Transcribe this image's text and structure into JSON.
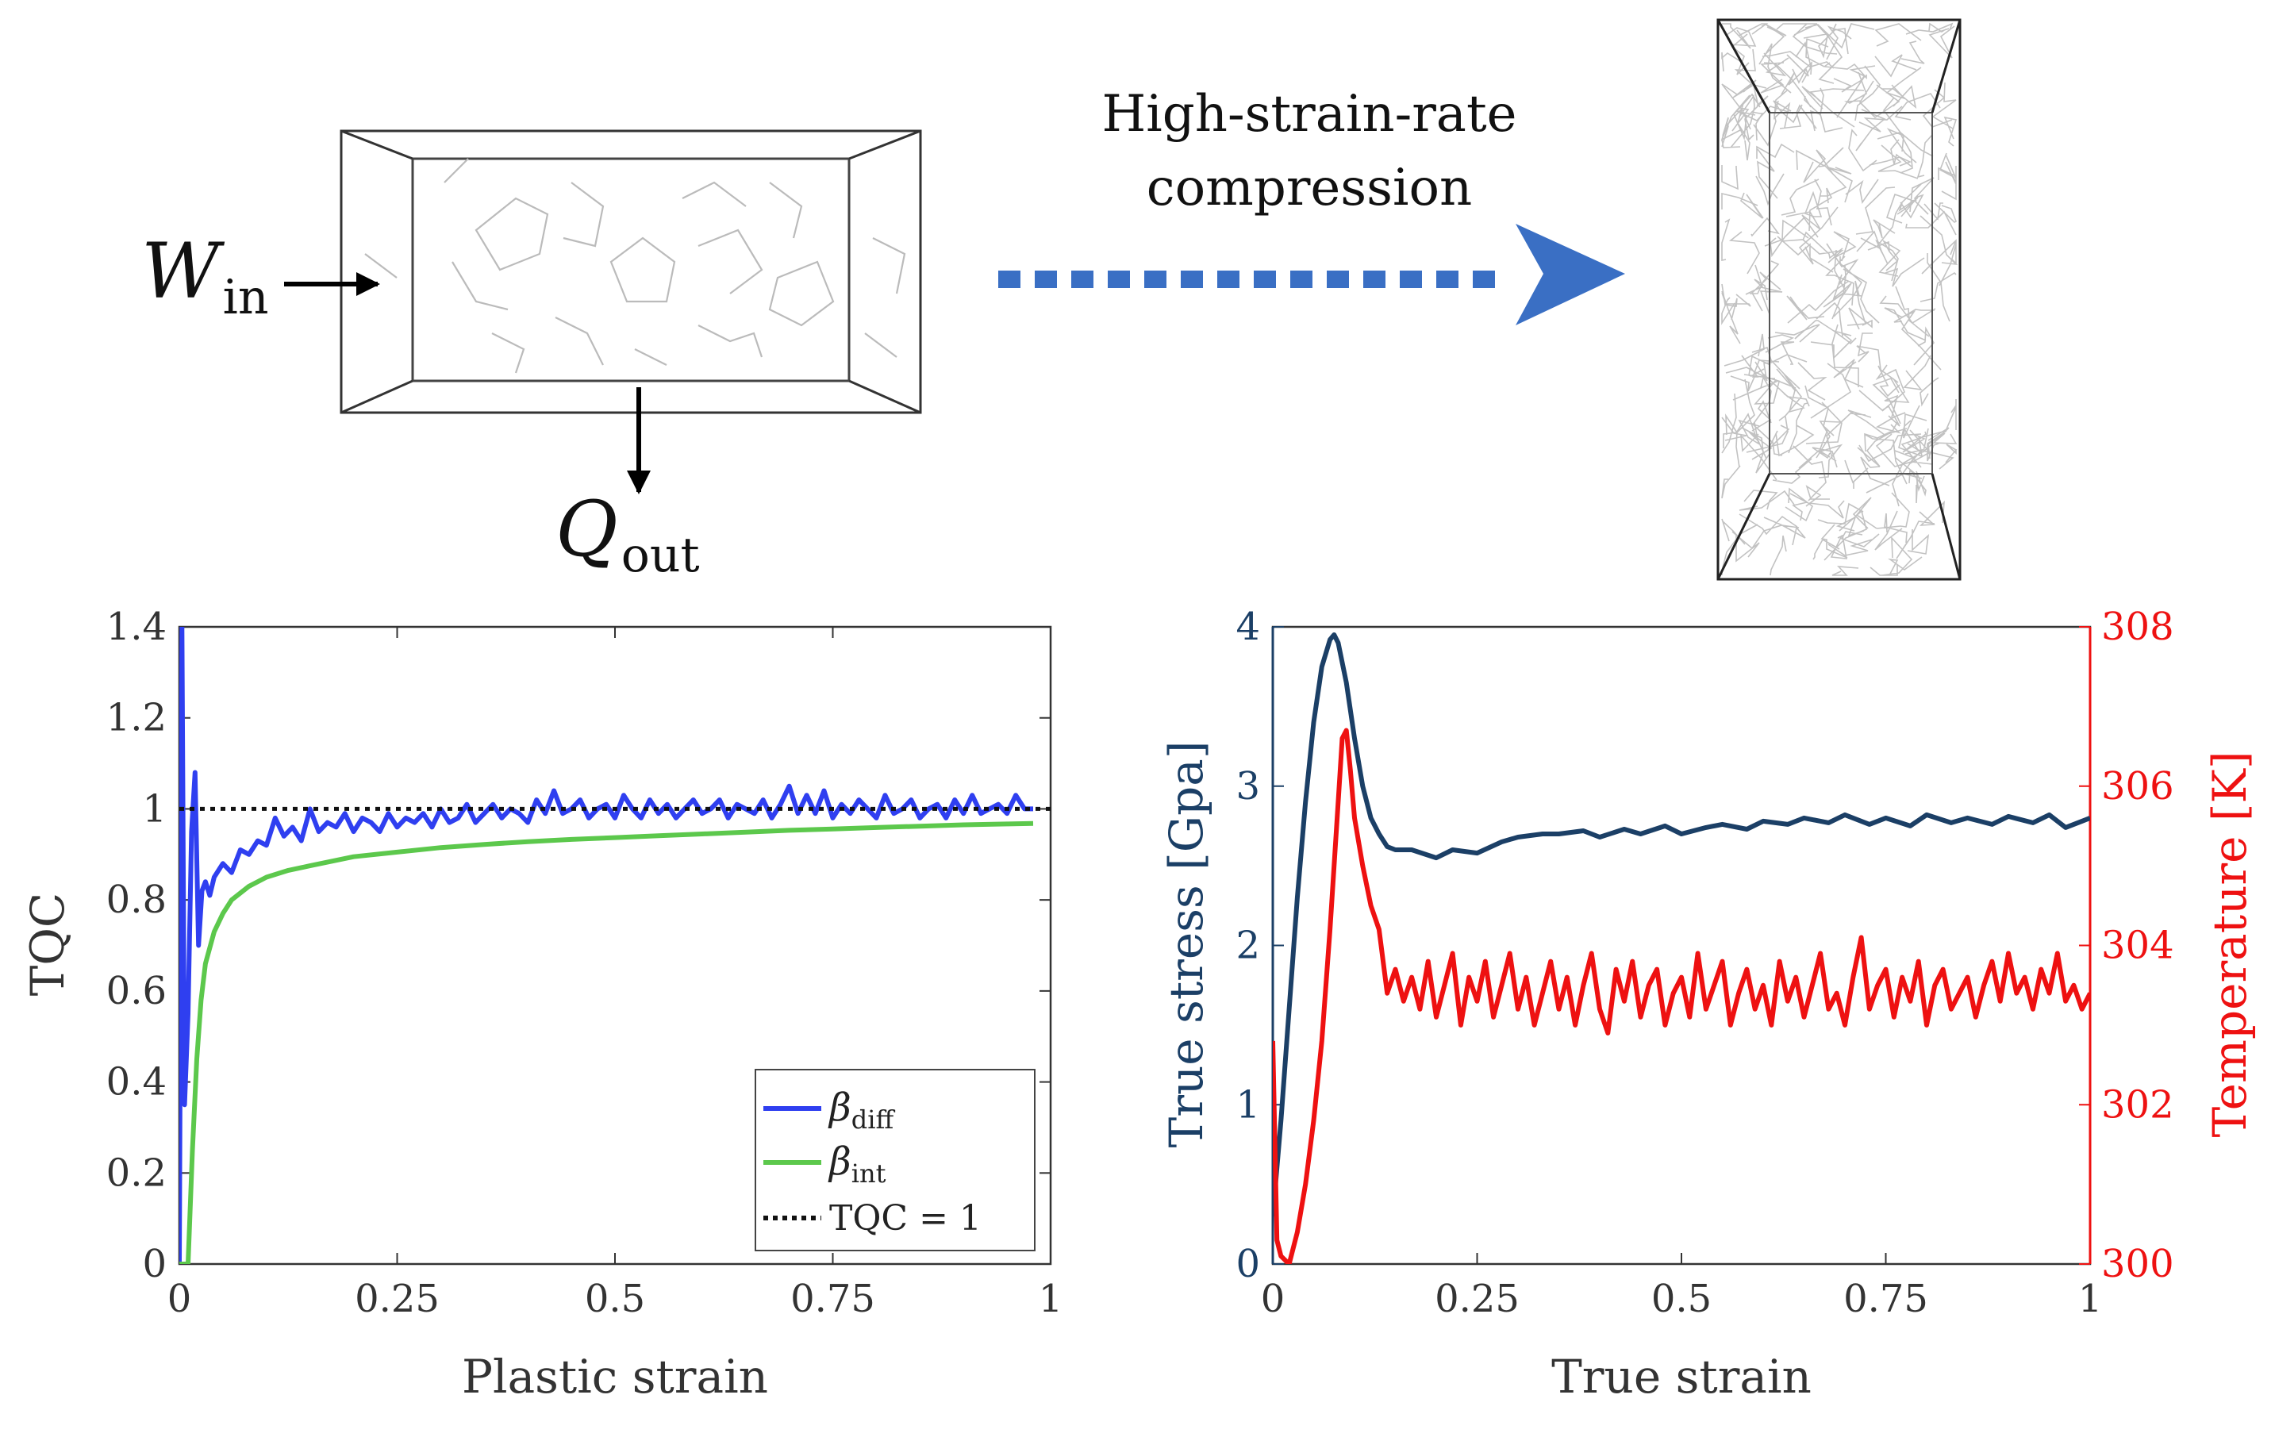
{
  "schematic": {
    "work_in_symbol": "W",
    "work_in_subscript": "in",
    "heat_out_symbol": "Q",
    "heat_out_subscript": "out",
    "process_label_line1": "High-strain-rate",
    "process_label_line2": "compression",
    "arrow_color": "#3a6fc4"
  },
  "chart_data": [
    {
      "type": "line",
      "xlabel": "Plastic strain",
      "ylabel": "TQC",
      "xlim": [
        0,
        1
      ],
      "ylim": [
        0,
        1.4
      ],
      "xticks": [
        0,
        0.25,
        0.5,
        0.75,
        1
      ],
      "xtick_labels": [
        "0",
        "0.25",
        "0.5",
        "0.75",
        "1"
      ],
      "yticks": [
        0,
        0.2,
        0.4,
        0.6,
        0.8,
        1,
        1.2,
        1.4
      ],
      "ytick_labels": [
        "0",
        "0.2",
        "0.4",
        "0.6",
        "0.8",
        "1",
        "1.2",
        "1.4"
      ],
      "grid": false,
      "legend_position": "bottom-right",
      "series": [
        {
          "name": "β_diff",
          "legend_symbol": "β",
          "legend_subscript": "diff",
          "color": "#2f3ff0",
          "style": "solid",
          "x": [
            0.0,
            0.003,
            0.006,
            0.01,
            0.014,
            0.018,
            0.022,
            0.026,
            0.03,
            0.035,
            0.04,
            0.05,
            0.06,
            0.07,
            0.08,
            0.09,
            0.1,
            0.11,
            0.12,
            0.13,
            0.14,
            0.15,
            0.16,
            0.17,
            0.18,
            0.19,
            0.2,
            0.21,
            0.22,
            0.23,
            0.24,
            0.25,
            0.26,
            0.27,
            0.28,
            0.29,
            0.3,
            0.31,
            0.32,
            0.33,
            0.34,
            0.35,
            0.36,
            0.37,
            0.38,
            0.39,
            0.4,
            0.41,
            0.42,
            0.43,
            0.44,
            0.45,
            0.46,
            0.47,
            0.48,
            0.49,
            0.5,
            0.51,
            0.52,
            0.53,
            0.54,
            0.55,
            0.56,
            0.57,
            0.58,
            0.59,
            0.6,
            0.61,
            0.62,
            0.63,
            0.64,
            0.65,
            0.66,
            0.67,
            0.68,
            0.69,
            0.7,
            0.71,
            0.72,
            0.73,
            0.74,
            0.75,
            0.76,
            0.77,
            0.78,
            0.79,
            0.8,
            0.81,
            0.82,
            0.83,
            0.84,
            0.85,
            0.86,
            0.87,
            0.88,
            0.89,
            0.9,
            0.91,
            0.92,
            0.93,
            0.94,
            0.95,
            0.96,
            0.97,
            0.98
          ],
          "y": [
            0.0,
            1.4,
            0.35,
            0.55,
            0.95,
            1.08,
            0.7,
            0.82,
            0.84,
            0.81,
            0.85,
            0.88,
            0.86,
            0.91,
            0.9,
            0.93,
            0.92,
            0.98,
            0.94,
            0.96,
            0.93,
            1.0,
            0.95,
            0.97,
            0.96,
            0.99,
            0.95,
            0.98,
            0.97,
            0.95,
            0.99,
            0.96,
            0.98,
            0.97,
            0.99,
            0.96,
            1.0,
            0.97,
            0.98,
            1.01,
            0.97,
            0.99,
            1.01,
            0.98,
            1.0,
            0.99,
            0.97,
            1.02,
            0.99,
            1.04,
            0.99,
            1.0,
            1.02,
            0.98,
            1.0,
            1.01,
            0.98,
            1.03,
            1.0,
            0.98,
            1.02,
            0.99,
            1.01,
            0.98,
            1.0,
            1.02,
            0.99,
            1.0,
            1.02,
            0.98,
            1.01,
            1.0,
            0.99,
            1.02,
            0.98,
            1.01,
            1.05,
            0.99,
            1.03,
            0.99,
            1.04,
            0.98,
            1.01,
            0.99,
            1.02,
            1.0,
            0.98,
            1.03,
            0.99,
            1.0,
            1.02,
            0.98,
            1.0,
            1.01,
            0.98,
            1.02,
            0.99,
            1.03,
            0.99,
            1.0,
            1.01,
            0.99,
            1.03,
            1.0,
            1.0
          ]
        },
        {
          "name": "β_int",
          "legend_symbol": "β",
          "legend_subscript": "int",
          "color": "#5cc84c",
          "style": "solid",
          "x": [
            0.0,
            0.005,
            0.01,
            0.015,
            0.02,
            0.025,
            0.03,
            0.04,
            0.05,
            0.06,
            0.08,
            0.1,
            0.125,
            0.15,
            0.2,
            0.25,
            0.3,
            0.35,
            0.4,
            0.45,
            0.5,
            0.55,
            0.6,
            0.65,
            0.7,
            0.75,
            0.8,
            0.85,
            0.9,
            0.95,
            0.98
          ],
          "y": [
            0.0,
            0.0,
            0.0,
            0.25,
            0.45,
            0.58,
            0.66,
            0.73,
            0.77,
            0.8,
            0.83,
            0.85,
            0.865,
            0.875,
            0.895,
            0.905,
            0.915,
            0.922,
            0.928,
            0.933,
            0.937,
            0.941,
            0.945,
            0.949,
            0.953,
            0.956,
            0.959,
            0.962,
            0.965,
            0.967,
            0.968
          ]
        },
        {
          "name": "TQC = 1",
          "color": "#111111",
          "style": "dotted",
          "x": [
            0,
            1
          ],
          "y": [
            1,
            1
          ]
        }
      ]
    },
    {
      "type": "line",
      "xlabel": "True strain",
      "ylabel_left": "True stress [Gpa]",
      "ylabel_right": "Temperature [K]",
      "xlim": [
        0,
        1
      ],
      "ylim_left": [
        0,
        4
      ],
      "ylim_right": [
        300,
        308
      ],
      "xticks": [
        0,
        0.25,
        0.5,
        0.75,
        1
      ],
      "xtick_labels": [
        "0",
        "0.25",
        "0.5",
        "0.75",
        "1"
      ],
      "yticks_left": [
        0,
        1,
        2,
        3,
        4
      ],
      "ytick_labels_left": [
        "0",
        "1",
        "2",
        "3",
        "4"
      ],
      "yticks_right": [
        300,
        302,
        304,
        306,
        308
      ],
      "ytick_labels_right": [
        "300",
        "302",
        "304",
        "306",
        "308"
      ],
      "grid": false,
      "left_color": "#1b3f66",
      "right_color": "#ee1111",
      "series": [
        {
          "name": "True stress",
          "axis": "left",
          "color": "#1b3f66",
          "x": [
            0.0,
            0.01,
            0.02,
            0.03,
            0.04,
            0.05,
            0.06,
            0.07,
            0.075,
            0.08,
            0.09,
            0.1,
            0.11,
            0.12,
            0.13,
            0.14,
            0.15,
            0.17,
            0.2,
            0.22,
            0.25,
            0.28,
            0.3,
            0.33,
            0.35,
            0.38,
            0.4,
            0.43,
            0.45,
            0.48,
            0.5,
            0.53,
            0.55,
            0.58,
            0.6,
            0.63,
            0.65,
            0.68,
            0.7,
            0.73,
            0.75,
            0.78,
            0.8,
            0.83,
            0.85,
            0.88,
            0.9,
            0.93,
            0.95,
            0.97,
            0.99,
            1.0
          ],
          "y": [
            0.3,
            0.9,
            1.6,
            2.3,
            2.9,
            3.4,
            3.75,
            3.92,
            3.95,
            3.9,
            3.65,
            3.3,
            3.0,
            2.8,
            2.7,
            2.62,
            2.6,
            2.6,
            2.55,
            2.6,
            2.58,
            2.65,
            2.68,
            2.7,
            2.7,
            2.72,
            2.68,
            2.73,
            2.7,
            2.75,
            2.7,
            2.74,
            2.76,
            2.73,
            2.78,
            2.76,
            2.8,
            2.77,
            2.82,
            2.76,
            2.8,
            2.75,
            2.82,
            2.77,
            2.8,
            2.76,
            2.81,
            2.77,
            2.82,
            2.74,
            2.78,
            2.8
          ]
        },
        {
          "name": "Temperature",
          "axis": "right",
          "color": "#ee1111",
          "x": [
            0.0,
            0.005,
            0.01,
            0.02,
            0.03,
            0.04,
            0.05,
            0.06,
            0.07,
            0.08,
            0.085,
            0.09,
            0.095,
            0.1,
            0.11,
            0.12,
            0.13,
            0.14,
            0.15,
            0.16,
            0.17,
            0.18,
            0.19,
            0.2,
            0.21,
            0.22,
            0.23,
            0.24,
            0.25,
            0.26,
            0.27,
            0.28,
            0.29,
            0.3,
            0.31,
            0.32,
            0.33,
            0.34,
            0.35,
            0.36,
            0.37,
            0.38,
            0.39,
            0.4,
            0.41,
            0.42,
            0.43,
            0.44,
            0.45,
            0.46,
            0.47,
            0.48,
            0.49,
            0.5,
            0.51,
            0.52,
            0.53,
            0.54,
            0.55,
            0.56,
            0.57,
            0.58,
            0.59,
            0.6,
            0.61,
            0.62,
            0.63,
            0.64,
            0.65,
            0.66,
            0.67,
            0.68,
            0.69,
            0.7,
            0.71,
            0.72,
            0.73,
            0.74,
            0.75,
            0.76,
            0.77,
            0.78,
            0.79,
            0.8,
            0.81,
            0.82,
            0.83,
            0.84,
            0.85,
            0.86,
            0.87,
            0.88,
            0.89,
            0.9,
            0.91,
            0.92,
            0.93,
            0.94,
            0.95,
            0.96,
            0.97,
            0.98,
            0.99,
            1.0
          ],
          "y": [
            302.8,
            300.3,
            300.1,
            300.0,
            300.4,
            301.0,
            301.8,
            302.8,
            304.2,
            305.8,
            306.6,
            306.7,
            306.2,
            305.6,
            305.0,
            304.5,
            304.2,
            303.4,
            303.7,
            303.3,
            303.6,
            303.2,
            303.8,
            303.1,
            303.5,
            303.9,
            303.0,
            303.6,
            303.3,
            303.8,
            303.1,
            303.5,
            303.9,
            303.2,
            303.6,
            303.0,
            303.4,
            303.8,
            303.2,
            303.6,
            303.0,
            303.5,
            303.9,
            303.2,
            302.9,
            303.7,
            303.3,
            303.8,
            303.1,
            303.5,
            303.7,
            303.0,
            303.4,
            303.6,
            303.1,
            303.9,
            303.2,
            303.5,
            303.8,
            303.0,
            303.4,
            303.7,
            303.2,
            303.5,
            303.0,
            303.8,
            303.3,
            303.6,
            303.1,
            303.5,
            303.9,
            303.2,
            303.4,
            303.0,
            303.6,
            304.1,
            303.2,
            303.5,
            303.7,
            303.1,
            303.6,
            303.3,
            303.8,
            303.0,
            303.5,
            303.7,
            303.2,
            303.4,
            303.6,
            303.1,
            303.5,
            303.8,
            303.3,
            303.9,
            303.4,
            303.6,
            303.2,
            303.7,
            303.4,
            303.9,
            303.3,
            303.5,
            303.2,
            303.4
          ]
        }
      ]
    }
  ]
}
